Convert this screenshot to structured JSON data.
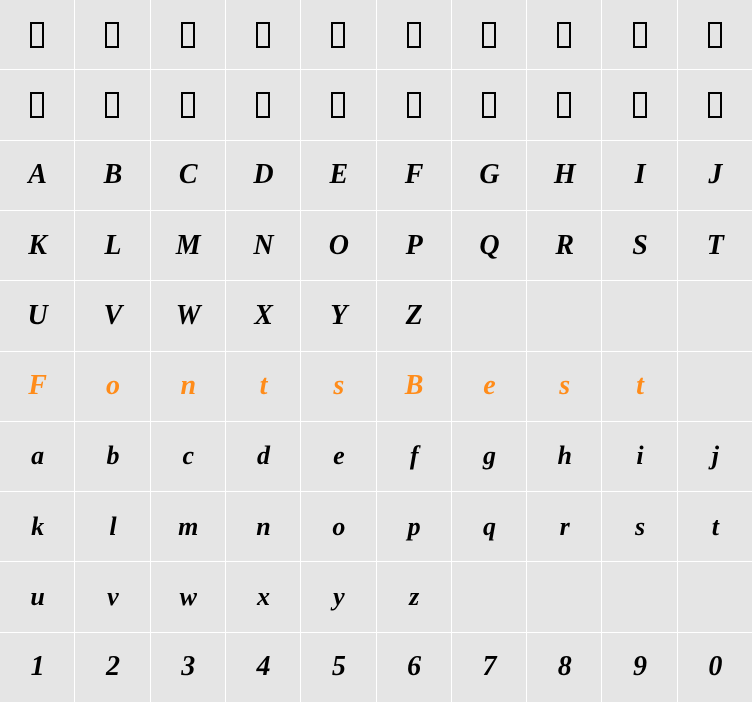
{
  "grid": {
    "columns": 10,
    "row_count": 10,
    "background_color": "#e5e5e5",
    "grid_line_color": "#ffffff",
    "default_text_color": "#000000",
    "highlight_text_color": "#ff8c1a",
    "font_family": "Brush Script MT, Segoe Script, cursive",
    "font_style": "italic",
    "font_weight": "bold",
    "cell_font_size_pt": 21,
    "rows": [
      {
        "type": "box",
        "cells": [
          "□",
          "□",
          "□",
          "□",
          "□",
          "□",
          "□",
          "□",
          "□",
          "□"
        ]
      },
      {
        "type": "box",
        "cells": [
          "□",
          "□",
          "□",
          "□",
          "□",
          "□",
          "□",
          "□",
          "□",
          "□"
        ]
      },
      {
        "type": "upper",
        "cells": [
          "A",
          "B",
          "C",
          "D",
          "E",
          "F",
          "G",
          "H",
          "I",
          "J"
        ]
      },
      {
        "type": "upper",
        "cells": [
          "K",
          "L",
          "M",
          "N",
          "O",
          "P",
          "Q",
          "R",
          "S",
          "T"
        ]
      },
      {
        "type": "upper",
        "cells": [
          "U",
          "V",
          "W",
          "X",
          "Y",
          "Z",
          "",
          "",
          "",
          ""
        ]
      },
      {
        "type": "highlight",
        "cells": [
          "F",
          "o",
          "n",
          "t",
          "s",
          "B",
          "e",
          "s",
          "t",
          ""
        ]
      },
      {
        "type": "lower",
        "cells": [
          "a",
          "b",
          "c",
          "d",
          "e",
          "f",
          "g",
          "h",
          "i",
          "j"
        ]
      },
      {
        "type": "lower",
        "cells": [
          "k",
          "l",
          "m",
          "n",
          "o",
          "p",
          "q",
          "r",
          "s",
          "t"
        ]
      },
      {
        "type": "lower",
        "cells": [
          "u",
          "v",
          "w",
          "x",
          "y",
          "z",
          "",
          "",
          "",
          ""
        ]
      },
      {
        "type": "num",
        "cells": [
          "1",
          "2",
          "3",
          "4",
          "5",
          "6",
          "7",
          "8",
          "9",
          "0"
        ]
      }
    ]
  }
}
